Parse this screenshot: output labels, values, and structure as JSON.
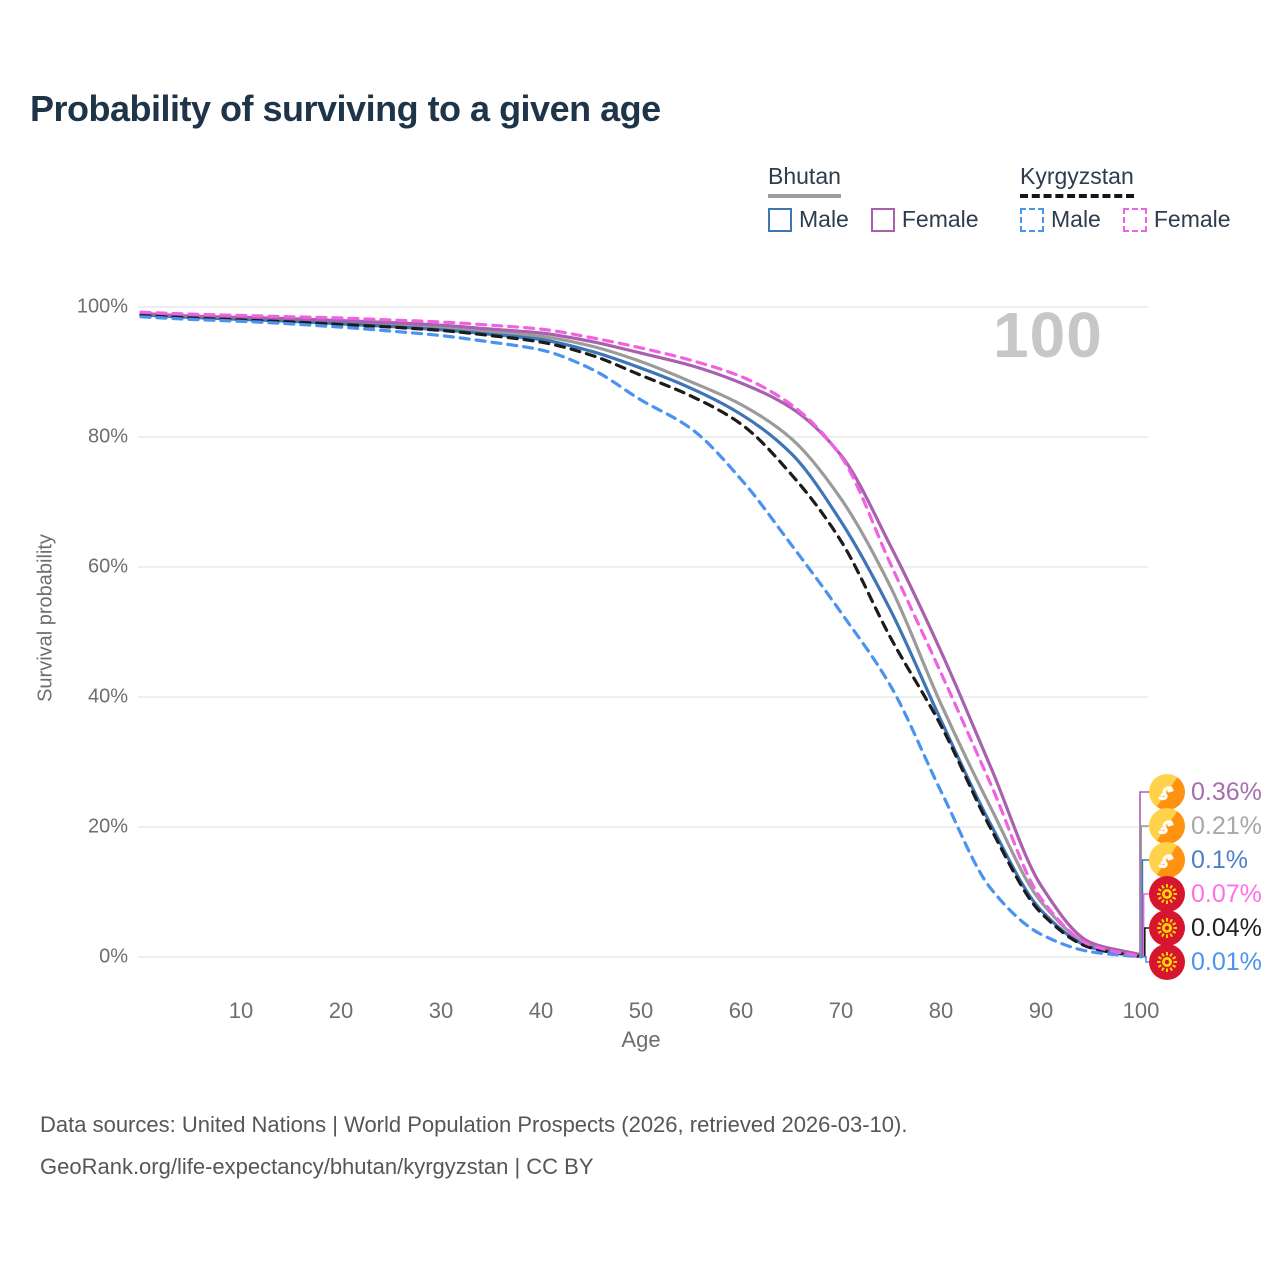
{
  "title": "Probability of surviving to a given age",
  "watermark": "100",
  "legend": {
    "groups": [
      {
        "name": "Bhutan",
        "line_style": "solid",
        "underline_color": "#9e9e9e",
        "items": [
          {
            "label": "Male",
            "color": "#3e75b7",
            "dashed": false
          },
          {
            "label": "Female",
            "color": "#a961ae",
            "dashed": false
          }
        ]
      },
      {
        "name": "Kyrgyzstan",
        "line_style": "dashed",
        "underline_color": "#161616",
        "items": [
          {
            "label": "Male",
            "color": "#4b93f1",
            "dashed": true
          },
          {
            "label": "Female",
            "color": "#ef63e3",
            "dashed": true
          }
        ]
      }
    ]
  },
  "chart_data": {
    "type": "line",
    "title": "Probability of surviving to a given age",
    "xlabel": "Age",
    "ylabel": "Survival probability",
    "xlim": [
      0,
      100
    ],
    "ylim": [
      0,
      100
    ],
    "grid": "horizontal",
    "legend_position": "top-right",
    "x": [
      0,
      5,
      10,
      15,
      20,
      25,
      30,
      35,
      40,
      45,
      50,
      55,
      60,
      65,
      70,
      75,
      80,
      85,
      90,
      95,
      100
    ],
    "x_tick_values": [
      10,
      20,
      30,
      40,
      50,
      60,
      70,
      80,
      90,
      100
    ],
    "x_tick_labels": [
      "10",
      "20",
      "30",
      "40",
      "50",
      "60",
      "70",
      "80",
      "90",
      "100"
    ],
    "y_tick_values": [
      0,
      20,
      40,
      60,
      80,
      100
    ],
    "y_tick_labels": [
      "0%",
      "20%",
      "40%",
      "60%",
      "80%",
      "100%"
    ],
    "series": [
      {
        "name": "Bhutan — Both sexes",
        "country": "Bhutan",
        "sex": "Both",
        "color": "#9b9b9b",
        "dashed": false,
        "flag": "bhutan",
        "values": [
          98.9,
          98.5,
          98.3,
          98.0,
          97.7,
          97.3,
          96.8,
          96.2,
          95.5,
          94.0,
          91.6,
          88.5,
          85.0,
          79.8,
          70.5,
          56.8,
          38.9,
          22.9,
          8.5,
          1.8,
          0.21
        ],
        "end_label": "0.21%",
        "end_label_color": "#a8a8a8",
        "label_row": 1
      },
      {
        "name": "Bhutan — Male",
        "country": "Bhutan",
        "sex": "Male",
        "color": "#3e75b7",
        "dashed": false,
        "flag": "bhutan",
        "values": [
          98.8,
          98.4,
          98.1,
          97.8,
          97.4,
          97.0,
          96.5,
          95.8,
          95.0,
          93.2,
          90.6,
          87.5,
          83.5,
          77.5,
          67.0,
          53.2,
          36.4,
          20.3,
          7.2,
          1.5,
          0.1
        ],
        "end_label": "0.1%",
        "end_label_color": "#4d7ec9",
        "label_row": 2
      },
      {
        "name": "Bhutan — Female",
        "country": "Bhutan",
        "sex": "Female",
        "color": "#a961ae",
        "dashed": false,
        "flag": "bhutan",
        "values": [
          99.0,
          98.6,
          98.4,
          98.2,
          97.9,
          97.6,
          97.2,
          96.6,
          96.0,
          94.7,
          92.9,
          91.0,
          88.3,
          84.5,
          77.2,
          63.1,
          47.0,
          29.1,
          11.0,
          2.2,
          0.36
        ],
        "end_label": "0.36%",
        "end_label_color": "#a36fae",
        "label_row": 0
      },
      {
        "name": "Kyrgyzstan — Both sexes",
        "country": "Kyrgyzstan",
        "sex": "Both",
        "color": "#1c1c1c",
        "dashed": true,
        "flag": "kyrgyzstan",
        "values": [
          98.7,
          98.3,
          98.0,
          97.7,
          97.3,
          96.9,
          96.4,
          95.6,
          94.6,
          92.6,
          89.5,
          86.3,
          82.0,
          74.3,
          64.0,
          49.0,
          35.6,
          19.7,
          6.8,
          1.4,
          0.04
        ],
        "end_label": "0.04%",
        "end_label_color": "#1f1f1f",
        "label_row": 4
      },
      {
        "name": "Kyrgyzstan — Male",
        "country": "Kyrgyzstan",
        "sex": "Male",
        "color": "#4b93f1",
        "dashed": true,
        "flag": "kyrgyzstan",
        "values": [
          98.5,
          98.1,
          97.8,
          97.4,
          96.9,
          96.3,
          95.6,
          94.6,
          93.4,
          90.5,
          85.7,
          81.3,
          73.5,
          63.5,
          53.0,
          41.6,
          25.5,
          10.5,
          3.5,
          0.8,
          0.01
        ],
        "end_label": "0.01%",
        "end_label_color": "#4b93f1",
        "label_row": 5
      },
      {
        "name": "Kyrgyzstan — Female",
        "country": "Kyrgyzstan",
        "sex": "Female",
        "color": "#ef63e3",
        "dashed": true,
        "flag": "kyrgyzstan",
        "values": [
          99.2,
          98.9,
          98.7,
          98.5,
          98.3,
          98.0,
          97.7,
          97.2,
          96.6,
          95.3,
          93.7,
          91.8,
          89.3,
          85.0,
          77.0,
          60.3,
          43.7,
          26.5,
          9.0,
          1.8,
          0.07
        ],
        "end_label": "0.07%",
        "end_label_color": "#ff70e8",
        "label_row": 3
      }
    ]
  },
  "footer": {
    "line1": "Data sources: United Nations | World Population Prospects (2026, retrieved 2026-03-10).",
    "line2": "GeoRank.org/life-expectancy/bhutan/kyrgyzstan | CC BY"
  }
}
